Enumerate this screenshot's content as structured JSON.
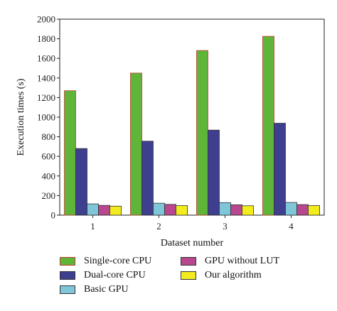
{
  "chart_data": {
    "type": "bar",
    "categories": [
      "1",
      "2",
      "3",
      "4"
    ],
    "series": [
      {
        "name": "Single-core CPU",
        "values": [
          1270,
          1450,
          1680,
          1825
        ],
        "color": "#5fb53a",
        "edge": "#c0392b"
      },
      {
        "name": "Dual-core CPU",
        "values": [
          680,
          755,
          868,
          938
        ],
        "color": "#3f3f8f",
        "edge": "#333333"
      },
      {
        "name": "Basic GPU",
        "values": [
          115,
          122,
          128,
          130
        ],
        "color": "#7fc6d8",
        "edge": "#333333"
      },
      {
        "name": "GPU without LUT",
        "values": [
          100,
          110,
          106,
          108
        ],
        "color": "#b8478f",
        "edge": "#333333"
      },
      {
        "name": "Our algorithm",
        "values": [
          92,
          98,
          96,
          98
        ],
        "color": "#f2ec1e",
        "edge": "#333333"
      }
    ],
    "xlabel": "Dataset number",
    "ylabel": "Execution times (s)",
    "ylim": [
      0,
      2000
    ],
    "yticks": [
      "0",
      "200",
      "400",
      "600",
      "800",
      "1000",
      "1200",
      "1400",
      "1600",
      "1800",
      "2000"
    ],
    "ytick_values": [
      0,
      200,
      400,
      600,
      800,
      1000,
      1200,
      1400,
      1600,
      1800,
      2000
    ],
    "grid": false,
    "legend_position": "bottom"
  }
}
